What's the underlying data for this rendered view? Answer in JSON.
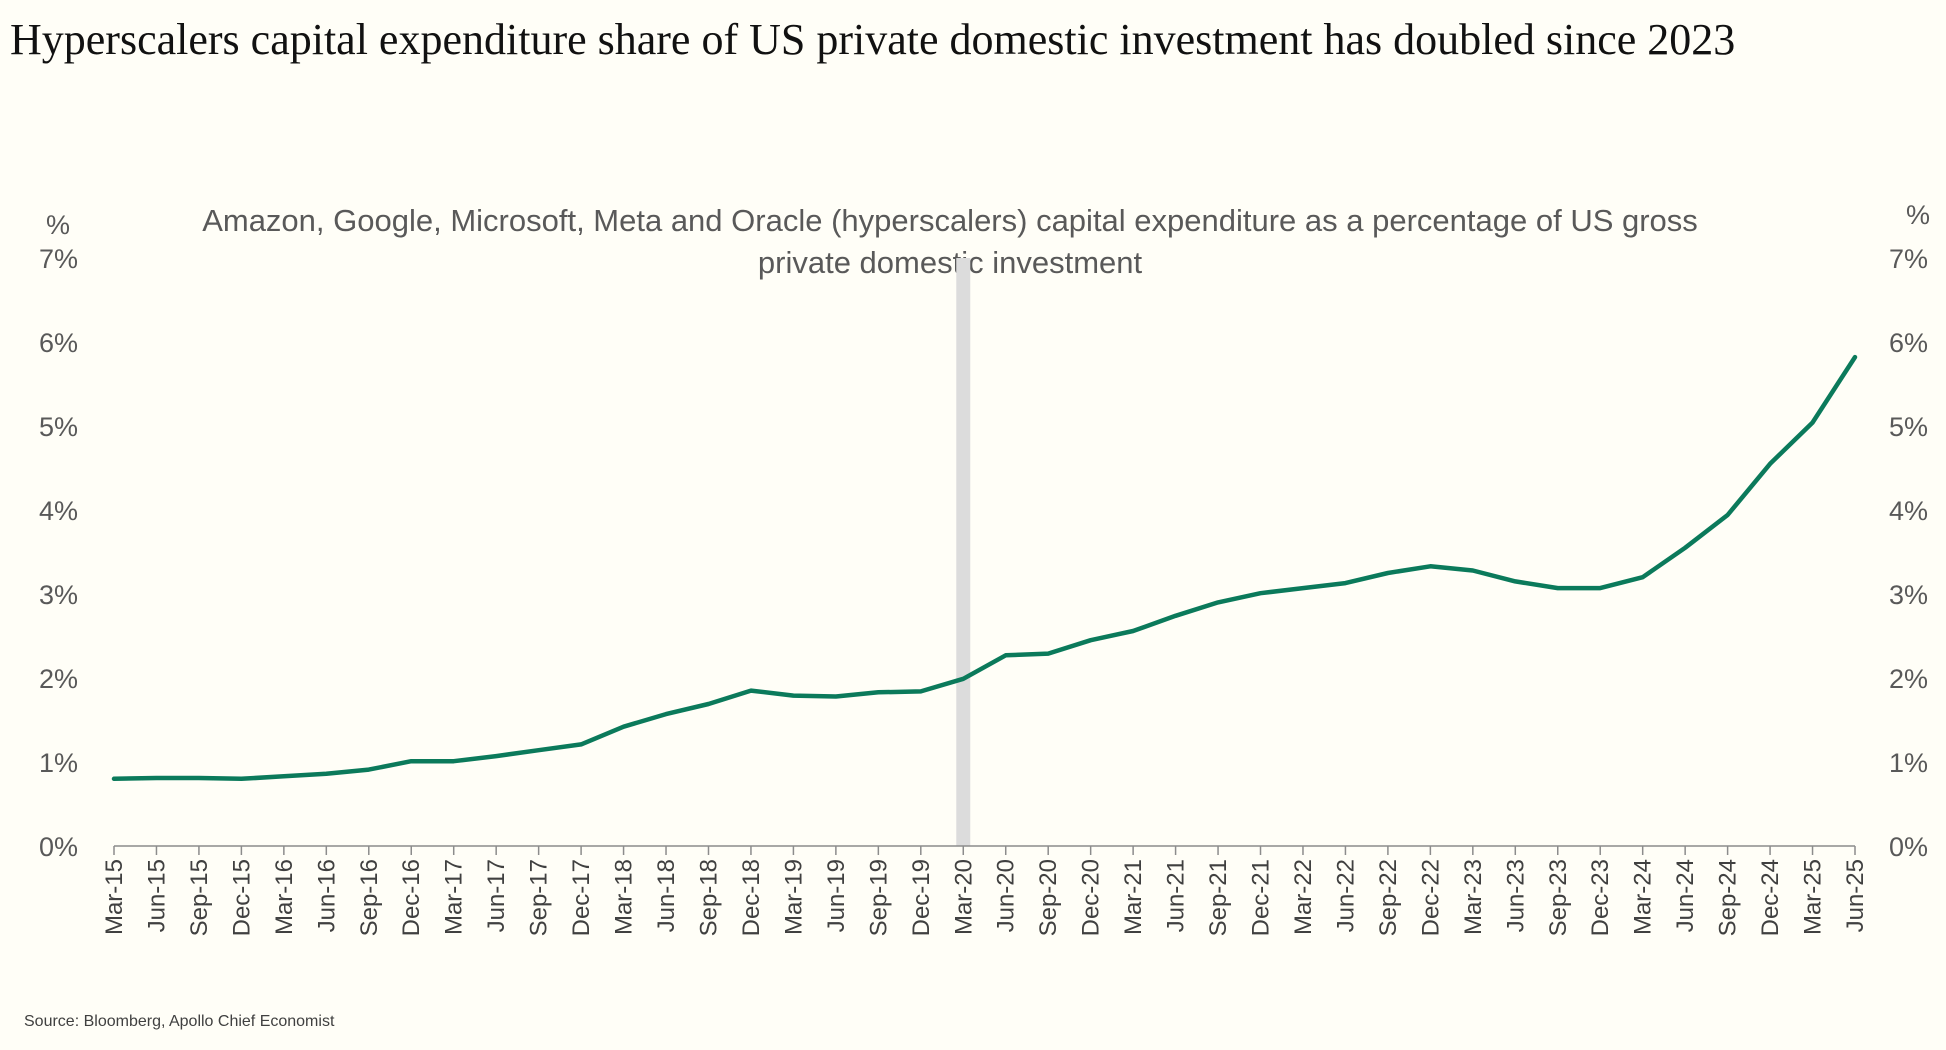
{
  "title": "Hyperscalers capital expenditure share of  US private domestic investment has doubled since 2023",
  "source": "Source: Bloomberg, Apollo Chief Economist",
  "colors": {
    "line": "#0b7a5b",
    "highlight": "#dcdcdc",
    "background": "#fffef7"
  },
  "chart_data": {
    "type": "line",
    "subtitle": "Amazon, Google, Microsoft, Meta and Oracle (hyperscalers) capital expenditure as a percentage of US gross private domestic investment",
    "y_unit_left": "%",
    "y_unit_right": "%",
    "ylim": [
      0,
      7
    ],
    "y_ticks": [
      "0%",
      "1%",
      "2%",
      "3%",
      "4%",
      "5%",
      "6%",
      "7%"
    ],
    "grid": false,
    "highlight_period": "Mar-20",
    "categories": [
      "Mar-15",
      "Jun-15",
      "Sep-15",
      "Dec-15",
      "Mar-16",
      "Jun-16",
      "Sep-16",
      "Dec-16",
      "Mar-17",
      "Jun-17",
      "Sep-17",
      "Dec-17",
      "Mar-18",
      "Jun-18",
      "Sep-18",
      "Dec-18",
      "Mar-19",
      "Jun-19",
      "Sep-19",
      "Dec-19",
      "Mar-20",
      "Jun-20",
      "Sep-20",
      "Dec-20",
      "Mar-21",
      "Jun-21",
      "Sep-21",
      "Dec-21",
      "Mar-22",
      "Jun-22",
      "Sep-22",
      "Dec-22",
      "Mar-23",
      "Jun-23",
      "Sep-23",
      "Dec-23",
      "Mar-24",
      "Jun-24",
      "Sep-24",
      "Dec-24",
      "Mar-25",
      "Jun-25"
    ],
    "series": [
      {
        "values": [
          0.8,
          0.81,
          0.81,
          0.8,
          0.83,
          0.86,
          0.91,
          1.01,
          1.01,
          1.07,
          1.14,
          1.21,
          1.42,
          1.57,
          1.69,
          1.85,
          1.79,
          1.78,
          1.83,
          1.84,
          1.99,
          2.27,
          2.29,
          2.45,
          2.56,
          2.74,
          2.9,
          3.01,
          3.07,
          3.13,
          3.25,
          3.33,
          3.28,
          3.15,
          3.07,
          3.07,
          3.2,
          3.55,
          3.94,
          4.55,
          5.04,
          5.82
        ]
      }
    ]
  }
}
